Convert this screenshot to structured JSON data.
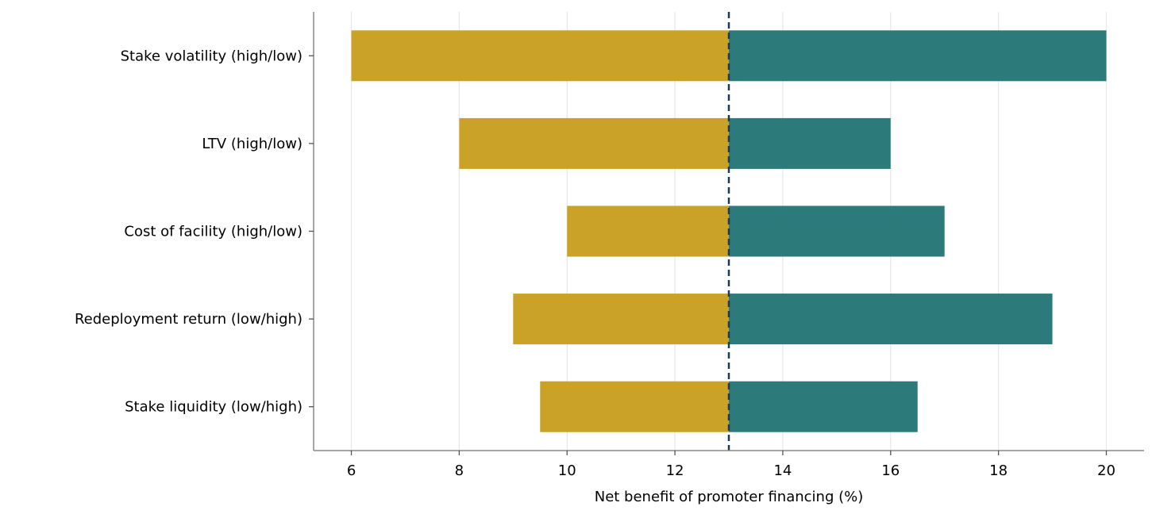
{
  "chart_data": {
    "type": "bar",
    "orientation": "horizontal",
    "chart_style": "tornado",
    "title": "",
    "xlabel": "Net benefit of promoter financing (%)",
    "ylabel": "",
    "xlim": [
      5.3,
      20.7
    ],
    "xticks": [
      6,
      8,
      10,
      12,
      14,
      16,
      18,
      20
    ],
    "xtick_labels": [
      "6",
      "8",
      "10",
      "12",
      "14",
      "16",
      "18",
      "20"
    ],
    "baseline": 13,
    "baseline_style": "dashed",
    "grid": "vertical",
    "categories": [
      "Stake volatility (high/low)",
      "LTV (high/low)",
      "Cost of facility (high/low)",
      "Redeployment return (low/high)",
      "Stake liquidity (low/high)"
    ],
    "low_values": [
      6,
      8,
      10,
      9,
      9.5
    ],
    "high_values": [
      20,
      16,
      17,
      19,
      16.5
    ],
    "colors": {
      "low": "#c9a227",
      "high": "#2d7a7b",
      "baseline": "#1a3a5c",
      "grid": "#e3e6ec",
      "axis": "#888888"
    }
  }
}
